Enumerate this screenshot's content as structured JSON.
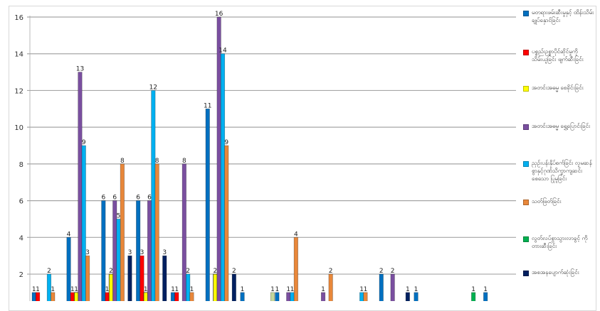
{
  "chart_data": {
    "type": "bar",
    "title": "",
    "xlabel": "",
    "ylabel": "",
    "ylim": [
      0,
      16
    ],
    "yticks": [
      2,
      4,
      6,
      8,
      10,
      12,
      14,
      16
    ],
    "grid": true,
    "legend_position": "right",
    "group_count": 14,
    "series": [
      {
        "name": "မတရားဖမ်းဆီးမှုနှင့် ထိန်းသိမ်းချုပ်နှောင်ခြင်း",
        "color": "#0070c0",
        "values": [
          1,
          4,
          6,
          6,
          1,
          11,
          1,
          1,
          0,
          0,
          2,
          1,
          0,
          1
        ]
      },
      {
        "name": "ပစ္စည်းဥစ္စာပိုင်ဆိုင်မှုကို သိမ်းယူခြင်း ဖျက်ဆီးခြင်း",
        "color": "#ff0000",
        "values": [
          1,
          1,
          1,
          3,
          1,
          0,
          0,
          0,
          0,
          0,
          0,
          0,
          0,
          0
        ]
      },
      {
        "name": "အတင်းအဓမ္မ စေခိုင်းခြင်း",
        "color": "#ffff00",
        "values": [
          0,
          1,
          2,
          1,
          0,
          2,
          0,
          0,
          0,
          0,
          0,
          0,
          0,
          0
        ]
      },
      {
        "name": "အတင်းအဓမ္မ ရွှေ့ပြောင်းခြင်း",
        "color": "#7a4fa0",
        "values": [
          0,
          13,
          6,
          6,
          8,
          16,
          0,
          1,
          1,
          0,
          2,
          0,
          0,
          0
        ]
      },
      {
        "name": "ညှဉ်းပန်းနှိပ်စက်ခြင်း လူမဆန်စွာနှင့်ဂုဏ်သိက္ခာကျဆင်းစေသော ပြုမူခြင်း",
        "color": "#00b0f0",
        "values": [
          2,
          9,
          5,
          12,
          2,
          14,
          0,
          1,
          0,
          1,
          0,
          0,
          0,
          0
        ]
      },
      {
        "name": "သတ်ဖြတ်ခြင်း",
        "color": "#e8873a",
        "values": [
          1,
          3,
          8,
          8,
          1,
          9,
          0,
          4,
          2,
          1,
          0,
          0,
          0,
          0
        ]
      },
      {
        "name": "လွတ်လပ်စွာသွားလာခွင့် ကိုတားဆီးခြင်း",
        "color": "#00b050",
        "values": [
          0,
          0,
          0,
          0,
          0,
          0,
          0,
          0,
          0,
          0,
          0,
          0,
          1,
          0
        ]
      },
      {
        "name": "အစအနပျောက်ဆုံးခြင်း",
        "color": "#002060",
        "values": [
          0,
          0,
          3,
          3,
          0,
          2,
          0,
          0,
          0,
          0,
          1,
          0,
          0,
          0
        ]
      },
      {
        "color": "#c4d79b",
        "values": [
          0,
          0,
          0,
          0,
          0,
          0,
          1,
          0,
          0,
          0,
          0,
          0,
          0,
          0
        ]
      }
    ]
  }
}
